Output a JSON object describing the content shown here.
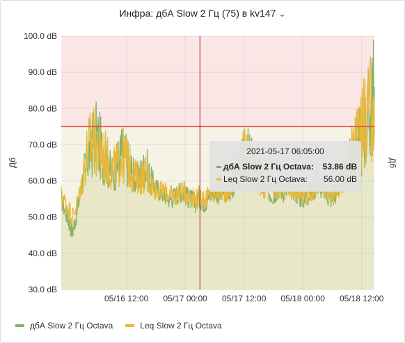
{
  "panel": {
    "title": "Инфра: дбА Slow 2 Гц (75) в kv147",
    "title_menu_icon": "chevron-down-icon"
  },
  "chart_data": {
    "type": "line",
    "ylabel_left": "Дб",
    "ylabel_right": "Дб",
    "ylim": [
      30,
      100
    ],
    "y_ticks": [
      "30.0 dB",
      "40.0 dB",
      "50.0 dB",
      "60.0 dB",
      "70.0 dB",
      "80.0 dB",
      "90.0 dB",
      "100.0 dB"
    ],
    "x_ticks": [
      "05/16 12:00",
      "05/17 00:00",
      "05/17 12:00",
      "05/18 00:00",
      "05/18 12:00"
    ],
    "x_tick_hours": [
      12,
      24,
      36,
      48,
      60
    ],
    "x_range_hours": [
      -1.3,
      62.6
    ],
    "threshold": 75,
    "threshold_region": [
      75,
      100
    ],
    "grid": true,
    "legend_position": "bottom-left",
    "series": [
      {
        "name": "дбА Slow 2 Гц Octava",
        "color": "#7eb26d",
        "x_hours": [
          -1.3,
          0,
          1,
          2,
          3,
          4,
          5,
          6,
          7,
          8,
          9,
          10,
          11,
          12,
          13,
          14,
          15,
          16,
          17,
          18,
          19,
          20,
          21,
          22,
          23,
          24,
          25,
          26,
          27,
          28,
          29,
          30,
          31,
          32,
          33,
          34,
          35,
          36,
          37,
          38,
          39,
          40,
          41,
          42,
          43,
          44,
          45,
          46,
          47,
          48,
          49,
          50,
          51,
          52,
          53,
          54,
          55,
          56,
          57,
          58,
          59,
          60,
          61,
          62,
          62.6
        ],
        "values": [
          55,
          50,
          46,
          52,
          60,
          66,
          70,
          72,
          68,
          65,
          62,
          64,
          68,
          66,
          63,
          60,
          62,
          64,
          60,
          58,
          57,
          56,
          55,
          56,
          57,
          56,
          55,
          54,
          55,
          54,
          56,
          57,
          56,
          57,
          56,
          60,
          63,
          66,
          67,
          64,
          62,
          58,
          57,
          56,
          58,
          57,
          57,
          58,
          56,
          55,
          56,
          57,
          60,
          58,
          56,
          55,
          57,
          60,
          63,
          66,
          70,
          72,
          76,
          80,
          86
        ]
      },
      {
        "name": "Leq Slow 2 Гц Octava",
        "color": "#eab839",
        "x_hours": [
          -1.3,
          0,
          1,
          2,
          3,
          4,
          5,
          6,
          7,
          8,
          9,
          10,
          11,
          12,
          13,
          14,
          15,
          16,
          17,
          18,
          19,
          20,
          21,
          22,
          23,
          24,
          25,
          26,
          27,
          28,
          29,
          30,
          31,
          32,
          33,
          34,
          35,
          36,
          37,
          38,
          39,
          40,
          41,
          42,
          43,
          44,
          45,
          46,
          47,
          48,
          49,
          50,
          51,
          52,
          53,
          54,
          55,
          56,
          57,
          58,
          59,
          60,
          61,
          62,
          62.6
        ],
        "values": [
          56,
          53,
          50,
          54,
          60,
          68,
          72,
          70,
          68,
          66,
          63,
          64,
          67,
          66,
          63,
          61,
          61,
          62,
          59,
          58,
          57,
          57,
          56,
          56,
          57,
          57,
          56,
          55,
          56,
          55,
          56,
          57,
          57,
          57,
          57,
          61,
          64,
          67,
          66,
          64,
          61,
          58,
          58,
          57,
          58,
          58,
          58,
          58,
          57,
          56,
          57,
          57,
          59,
          58,
          57,
          56,
          58,
          61,
          64,
          68,
          72,
          74,
          78,
          80,
          72
        ]
      }
    ],
    "cursor_hour": 27.0
  },
  "tooltip": {
    "time": "2021-05-17 06:05:00",
    "rows": [
      {
        "name": "дбА Slow 2 Гц Octava:",
        "value": "53.86 dB",
        "color": "#7eb26d",
        "bold": true
      },
      {
        "name": "Leq Slow 2 Гц Octava:",
        "value": "56.00 dB",
        "color": "#eab839",
        "bold": false
      }
    ]
  }
}
